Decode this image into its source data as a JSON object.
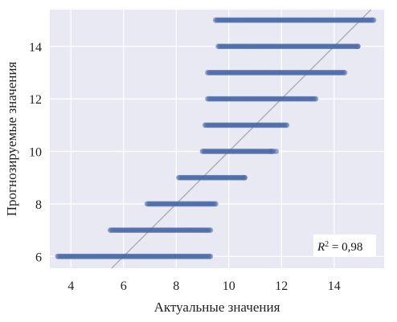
{
  "chart_data": {
    "type": "scatter",
    "xlabel": "Актуальные значения",
    "ylabel": "Прогнозируемые значения",
    "xlim": [
      3.2,
      15.9
    ],
    "ylim": [
      5.55,
      15.4
    ],
    "xticks": [
      4,
      6,
      8,
      10,
      12,
      14
    ],
    "yticks": [
      6,
      8,
      10,
      12,
      14
    ],
    "grid": true,
    "background": "#e8e9f3",
    "grid_color": "#ffffff",
    "point_color": "#4a6aa8",
    "reference_line": {
      "type": "identity",
      "color": "#9a9a9a"
    },
    "annotation": {
      "prefix": "R",
      "superscript": "2",
      "text": " = 0,98",
      "position": "bottom-right"
    },
    "bands": [
      {
        "y": 6,
        "x_min": 3.5,
        "x_max": 9.3
      },
      {
        "y": 7,
        "x_min": 5.5,
        "x_max": 9.3
      },
      {
        "y": 8,
        "x_min": 6.9,
        "x_max": 9.5
      },
      {
        "y": 9,
        "x_min": 8.1,
        "x_max": 10.6
      },
      {
        "y": 10,
        "x_min": 9.0,
        "x_max": 11.7
      },
      {
        "y": 11,
        "x_min": 9.1,
        "x_max": 12.2
      },
      {
        "y": 12,
        "x_min": 9.2,
        "x_max": 13.3
      },
      {
        "y": 13,
        "x_min": 9.2,
        "x_max": 14.4
      },
      {
        "y": 14,
        "x_min": 9.6,
        "x_max": 14.9
      },
      {
        "y": 15,
        "x_min": 9.5,
        "x_max": 15.5
      }
    ],
    "isolated_points": [
      {
        "x": 10.6,
        "y": 9
      },
      {
        "x": 11.6,
        "y": 10
      },
      {
        "x": 11.8,
        "y": 10
      },
      {
        "x": 14.9,
        "y": 14
      }
    ]
  }
}
